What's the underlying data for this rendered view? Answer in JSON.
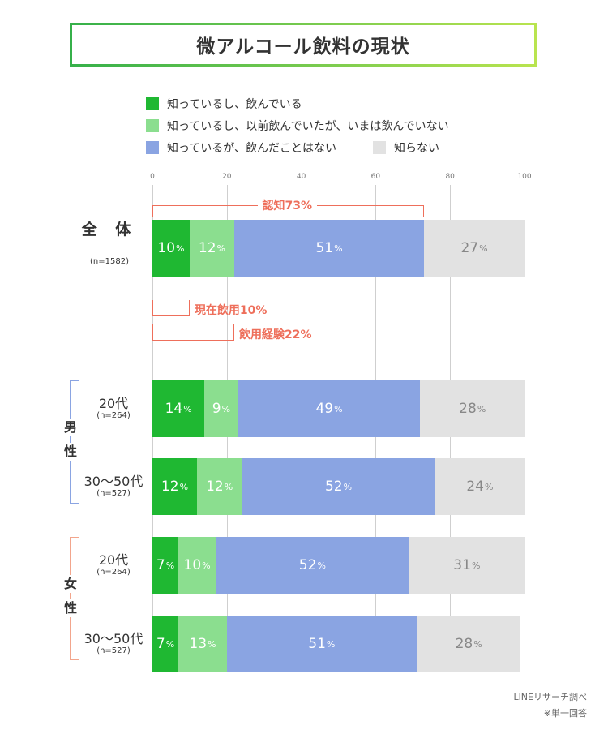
{
  "title": "微アルコール飲料の現状",
  "legend": [
    {
      "label": "知っているし、飲んでいる",
      "color": "#1fb832"
    },
    {
      "label": "知っているし、以前飲んでいたが、いまは飲んでいない",
      "color": "#8bde8f"
    },
    {
      "label": "知っているが、飲んだことはない",
      "color": "#8aa4e2"
    },
    {
      "label": "知らない",
      "color": "#e2e2e2"
    }
  ],
  "chart_data": {
    "type": "bar",
    "orientation": "horizontal",
    "stacked": true,
    "xlim": [
      0,
      100
    ],
    "xticks": [
      "0",
      "20",
      "40",
      "60",
      "80",
      "100"
    ],
    "pct_unit": "%",
    "series": [
      {
        "name": "知っているし、飲んでいる",
        "color": "#1fb832",
        "text_color": "#ffffff"
      },
      {
        "name": "知っているし、以前飲んでいたが、いまは飲んでいない",
        "color": "#8bde8f",
        "text_color": "#ffffff"
      },
      {
        "name": "知っているが、飲んだことはない",
        "color": "#8aa4e2",
        "text_color": "#ffffff"
      },
      {
        "name": "知らない",
        "color": "#e2e2e2",
        "text_color": "#888888"
      }
    ],
    "rows": [
      {
        "label": "全 体",
        "n": "(n=1582)",
        "values": [
          10,
          12,
          51,
          27
        ]
      },
      {
        "label": "20代",
        "n": "(n=264)",
        "group": "男性",
        "values": [
          14,
          9,
          49,
          28
        ]
      },
      {
        "label": "30〜50代",
        "n": "(n=527)",
        "group": "男性",
        "values": [
          12,
          12,
          52,
          24
        ]
      },
      {
        "label": "20代",
        "n": "(n=264)",
        "group": "女性",
        "values": [
          7,
          10,
          52,
          31
        ]
      },
      {
        "label": "30〜50代",
        "n": "(n=527)",
        "group": "女性",
        "values": [
          7,
          13,
          51,
          28
        ]
      }
    ],
    "groups": [
      {
        "label": "男",
        "label2": "性",
        "color": "#8aa4e2"
      },
      {
        "label": "女",
        "label2": "性",
        "color": "#f2a58c"
      }
    ],
    "annotations": [
      {
        "text": "認知73%",
        "value": 73
      },
      {
        "text": "現在飲用10%",
        "value": 10
      },
      {
        "text": "飲用経験22%",
        "value": 22
      }
    ]
  },
  "notes": {
    "source": "LINEリサーチ調べ",
    "answer": "※単一回答"
  }
}
